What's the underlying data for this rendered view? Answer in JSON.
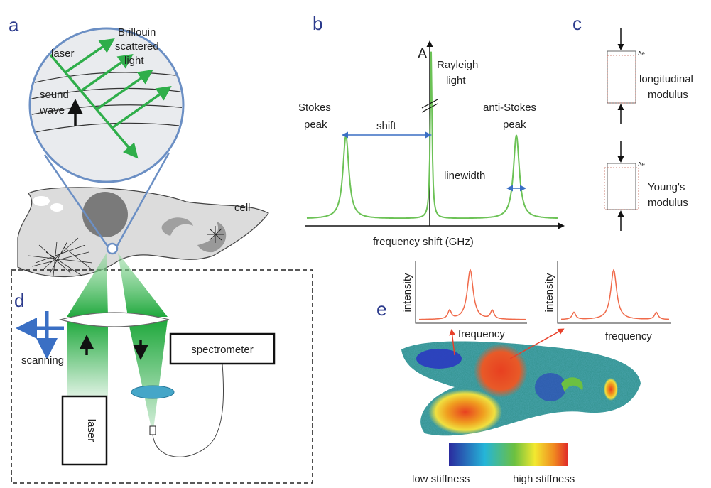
{
  "panel_labels": {
    "a": "a",
    "b": "b",
    "c": "c",
    "d": "d",
    "e": "e"
  },
  "panel_a": {
    "laser": "laser",
    "brillouin": [
      "Brillouin",
      "scattered",
      "light"
    ],
    "sound_wave": [
      "sound",
      "wave"
    ],
    "cell": "cell"
  },
  "panel_b": {
    "amplitude": "A",
    "rayleigh": [
      "Rayleigh",
      "light"
    ],
    "stokes": [
      "Stokes",
      "peak"
    ],
    "shift": "shift",
    "anti_stokes": [
      "anti-Stokes",
      "peak"
    ],
    "linewidth": "linewidth",
    "x_axis": "frequency shift (GHz)"
  },
  "panel_c": {
    "delta": [
      "Δe",
      "Δe"
    ],
    "longitudinal": [
      "longitudinal",
      "modulus"
    ],
    "young": [
      "Young's",
      "modulus"
    ]
  },
  "panel_d": {
    "scanning": "scanning",
    "spectrometer": "spectrometer",
    "laser": "laser"
  },
  "panel_e": {
    "spectra": [
      {
        "y_label": "intensity",
        "x_label": "frequency"
      },
      {
        "y_label": "intensity",
        "x_label": "frequency"
      }
    ],
    "colorbar": {
      "low": "low stiffness",
      "high": "high stiffness"
    }
  }
}
